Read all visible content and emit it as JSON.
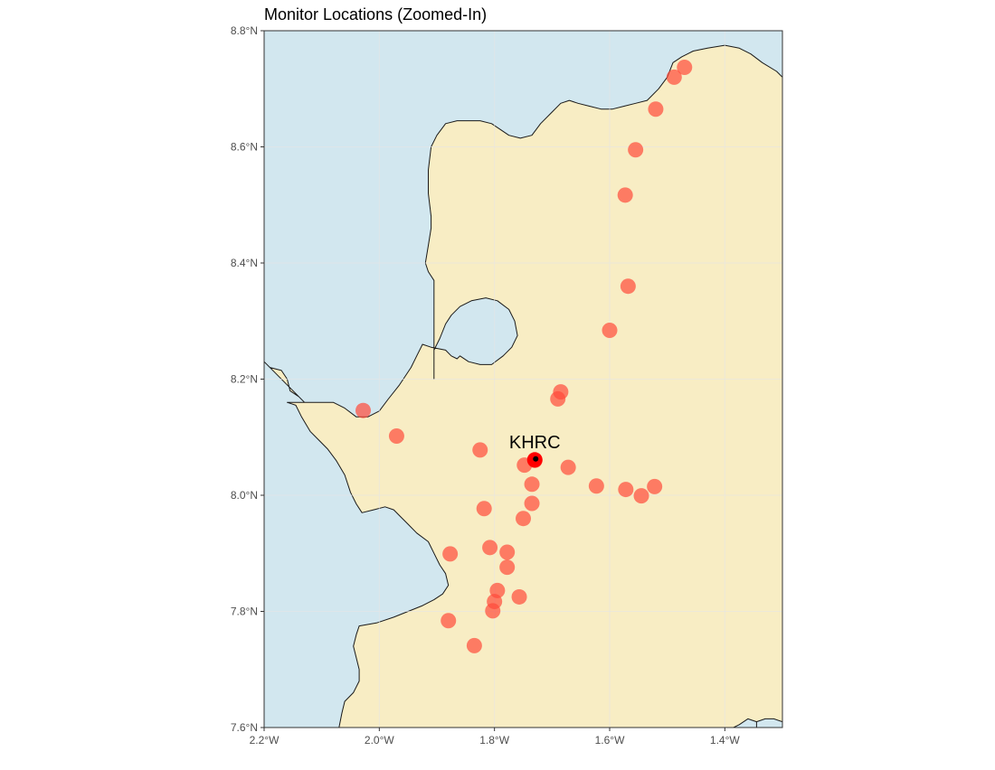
{
  "title": "Monitor Locations (Zoomed-In)",
  "map": {
    "extent": {
      "lon_min": -2.2,
      "lon_max": -1.3,
      "lat_min": 7.6,
      "lat_max": 8.8
    },
    "x_ticks": [
      {
        "value": -2.2,
        "label": "2.2°W"
      },
      {
        "value": -2.0,
        "label": "2.0°W"
      },
      {
        "value": -1.8,
        "label": "1.8°W"
      },
      {
        "value": -1.6,
        "label": "1.6°W"
      },
      {
        "value": -1.4,
        "label": "1.4°W"
      }
    ],
    "y_ticks": [
      {
        "value": 7.6,
        "label": "7.6°N"
      },
      {
        "value": 7.8,
        "label": "7.8°N"
      },
      {
        "value": 8.0,
        "label": "8.0°N"
      },
      {
        "value": 8.2,
        "label": "8.2°N"
      },
      {
        "value": 8.4,
        "label": "8.4°N"
      },
      {
        "value": 8.6,
        "label": "8.6°N"
      },
      {
        "value": 8.8,
        "label": "8.8°N"
      }
    ],
    "colors": {
      "water": "#d2e7ef",
      "land": "#f8edc4",
      "coast": "#1a1a1a",
      "monitor": "#ff4a3a",
      "grid": "#e6e6e6"
    },
    "coastline": [
      [
        -2.2,
        8.23
      ],
      [
        -2.19,
        8.22
      ],
      [
        -2.17,
        8.215
      ],
      [
        -2.16,
        8.2
      ],
      [
        -2.155,
        8.18
      ],
      [
        -2.14,
        8.17
      ],
      [
        -2.13,
        8.16
      ],
      [
        -2.105,
        8.16
      ],
      [
        -2.08,
        8.16
      ],
      [
        -2.06,
        8.15
      ],
      [
        -2.04,
        8.135
      ],
      [
        -2.02,
        8.135
      ],
      [
        -2.0,
        8.145
      ],
      [
        -1.985,
        8.165
      ],
      [
        -1.965,
        8.19
      ],
      [
        -1.945,
        8.22
      ],
      [
        -1.935,
        8.24
      ],
      [
        -1.925,
        8.26
      ],
      [
        -1.91,
        8.255
      ],
      [
        -1.885,
        8.25
      ],
      [
        -1.875,
        8.24
      ],
      [
        -1.865,
        8.235
      ],
      [
        -1.86,
        8.24
      ],
      [
        -1.845,
        8.23
      ],
      [
        -1.825,
        8.225
      ],
      [
        -1.805,
        8.225
      ],
      [
        -1.785,
        8.24
      ],
      [
        -1.77,
        8.255
      ],
      [
        -1.76,
        8.275
      ],
      [
        -1.765,
        8.3
      ],
      [
        -1.775,
        8.32
      ],
      [
        -1.795,
        8.335
      ],
      [
        -1.815,
        8.34
      ],
      [
        -1.84,
        8.335
      ],
      [
        -1.86,
        8.325
      ],
      [
        -1.875,
        8.31
      ],
      [
        -1.885,
        8.295
      ],
      [
        -1.895,
        8.27
      ],
      [
        -1.905,
        8.25
      ],
      [
        -1.905,
        8.2
      ],
      [
        -1.905,
        8.2
      ],
      [
        -1.905,
        8.37
      ],
      [
        -1.915,
        8.385
      ],
      [
        -1.92,
        8.4
      ],
      [
        -1.915,
        8.43
      ],
      [
        -1.91,
        8.46
      ],
      [
        -1.91,
        8.48
      ],
      [
        -1.915,
        8.52
      ],
      [
        -1.915,
        8.56
      ],
      [
        -1.91,
        8.6
      ],
      [
        -1.9,
        8.62
      ],
      [
        -1.885,
        8.64
      ],
      [
        -1.865,
        8.645
      ],
      [
        -1.845,
        8.645
      ],
      [
        -1.825,
        8.645
      ],
      [
        -1.805,
        8.64
      ],
      [
        -1.79,
        8.63
      ],
      [
        -1.775,
        8.62
      ],
      [
        -1.755,
        8.615
      ],
      [
        -1.735,
        8.62
      ],
      [
        -1.72,
        8.64
      ],
      [
        -1.7,
        8.66
      ],
      [
        -1.685,
        8.675
      ],
      [
        -1.67,
        8.68
      ],
      [
        -1.655,
        8.675
      ],
      [
        -1.635,
        8.67
      ],
      [
        -1.615,
        8.665
      ],
      [
        -1.595,
        8.665
      ],
      [
        -1.575,
        8.67
      ],
      [
        -1.555,
        8.675
      ],
      [
        -1.535,
        8.68
      ],
      [
        -1.515,
        8.7
      ],
      [
        -1.5,
        8.72
      ],
      [
        -1.49,
        8.745
      ],
      [
        -1.475,
        8.755
      ],
      [
        -1.455,
        8.765
      ],
      [
        -1.43,
        8.77
      ],
      [
        -1.4,
        8.775
      ],
      [
        -1.375,
        8.77
      ],
      [
        -1.355,
        8.76
      ],
      [
        -1.335,
        8.745
      ],
      [
        -1.31,
        8.73
      ],
      [
        -1.3,
        8.72
      ],
      [
        -1.3,
        7.6
      ],
      [
        -1.34,
        7.6
      ],
      [
        -1.345,
        7.61
      ],
      [
        -1.36,
        7.615
      ],
      [
        -1.375,
        7.605
      ],
      [
        -1.385,
        7.6
      ],
      [
        -2.07,
        7.6
      ],
      [
        -2.065,
        7.625
      ],
      [
        -2.06,
        7.645
      ],
      [
        -2.045,
        7.66
      ],
      [
        -2.035,
        7.68
      ],
      [
        -2.035,
        7.7
      ],
      [
        -2.04,
        7.72
      ],
      [
        -2.045,
        7.74
      ],
      [
        -2.04,
        7.76
      ],
      [
        -2.035,
        7.775
      ],
      [
        -2.005,
        7.78
      ],
      [
        -1.975,
        7.79
      ],
      [
        -1.95,
        7.8
      ],
      [
        -1.925,
        7.81
      ],
      [
        -1.905,
        7.82
      ],
      [
        -1.89,
        7.83
      ],
      [
        -1.88,
        7.845
      ],
      [
        -1.885,
        7.865
      ],
      [
        -1.895,
        7.88
      ],
      [
        -1.905,
        7.9
      ],
      [
        -1.915,
        7.92
      ],
      [
        -1.935,
        7.935
      ],
      [
        -1.95,
        7.95
      ],
      [
        -1.965,
        7.965
      ],
      [
        -1.975,
        7.975
      ],
      [
        -1.99,
        7.98
      ],
      [
        -2.01,
        7.975
      ],
      [
        -2.03,
        7.97
      ],
      [
        -2.04,
        7.985
      ],
      [
        -2.05,
        8.005
      ],
      [
        -2.06,
        8.035
      ],
      [
        -2.075,
        8.06
      ],
      [
        -2.09,
        8.08
      ],
      [
        -2.105,
        8.095
      ],
      [
        -2.12,
        8.11
      ],
      [
        -2.135,
        8.135
      ],
      [
        -2.145,
        8.155
      ],
      [
        -2.16,
        8.16
      ],
      [
        -2.13,
        8.16
      ]
    ],
    "island": [
      [
        -1.345,
        7.6
      ],
      [
        -1.345,
        7.61
      ],
      [
        -1.33,
        7.615
      ],
      [
        -1.315,
        7.615
      ],
      [
        -1.3,
        7.61
      ],
      [
        -1.3,
        7.6
      ]
    ],
    "monitors": [
      {
        "lon": -1.47,
        "lat": 8.737
      },
      {
        "lon": -1.488,
        "lat": 8.72
      },
      {
        "lon": -1.52,
        "lat": 8.665
      },
      {
        "lon": -1.555,
        "lat": 8.595
      },
      {
        "lon": -1.573,
        "lat": 8.517
      },
      {
        "lon": -1.568,
        "lat": 8.36
      },
      {
        "lon": -1.6,
        "lat": 8.284
      },
      {
        "lon": -1.685,
        "lat": 8.178
      },
      {
        "lon": -1.69,
        "lat": 8.166
      },
      {
        "lon": -2.028,
        "lat": 8.146
      },
      {
        "lon": -1.97,
        "lat": 8.102
      },
      {
        "lon": -1.825,
        "lat": 8.078
      },
      {
        "lon": -1.73,
        "lat": 8.06
      },
      {
        "lon": -1.748,
        "lat": 8.052
      },
      {
        "lon": -1.672,
        "lat": 8.048
      },
      {
        "lon": -1.735,
        "lat": 8.019
      },
      {
        "lon": -1.623,
        "lat": 8.016
      },
      {
        "lon": -1.572,
        "lat": 8.01
      },
      {
        "lon": -1.522,
        "lat": 8.015
      },
      {
        "lon": -1.545,
        "lat": 7.999
      },
      {
        "lon": -1.735,
        "lat": 7.986
      },
      {
        "lon": -1.818,
        "lat": 7.977
      },
      {
        "lon": -1.75,
        "lat": 7.96
      },
      {
        "lon": -1.808,
        "lat": 7.91
      },
      {
        "lon": -1.778,
        "lat": 7.902
      },
      {
        "lon": -1.877,
        "lat": 7.899
      },
      {
        "lon": -1.778,
        "lat": 7.876
      },
      {
        "lon": -1.795,
        "lat": 7.836
      },
      {
        "lon": -1.757,
        "lat": 7.825
      },
      {
        "lon": -1.8,
        "lat": 7.817
      },
      {
        "lon": -1.803,
        "lat": 7.801
      },
      {
        "lon": -1.88,
        "lat": 7.784
      },
      {
        "lon": -1.835,
        "lat": 7.741
      }
    ],
    "khrc": {
      "label": "KHRC",
      "lon": -1.73,
      "lat": 8.061
    }
  }
}
